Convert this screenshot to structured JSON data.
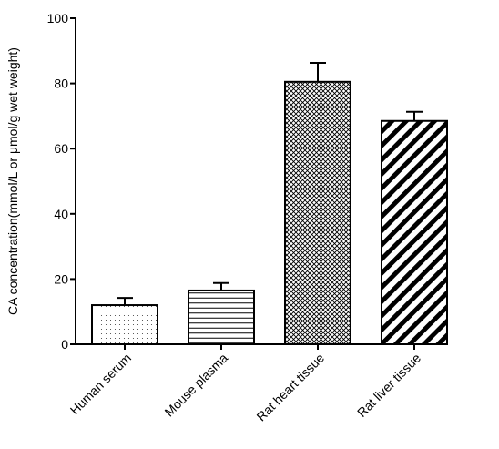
{
  "chart_data": {
    "type": "bar",
    "title": "",
    "xlabel": "",
    "ylabel": "CA concentration(mmol/L or μmol/g wet weight)",
    "ylim": [
      0,
      100
    ],
    "yticks": [
      0,
      20,
      40,
      60,
      80,
      100
    ],
    "categories": [
      "Human serum",
      "Mouse plasma",
      "Rat heart tissue",
      "Rat liver tissue"
    ],
    "values": [
      12,
      16.5,
      80.5,
      68.5
    ],
    "error_upper": [
      14.2,
      18.8,
      86.3,
      71.3
    ],
    "fill_patterns": [
      "dots",
      "horizontal-lines",
      "crosshatch",
      "diagonal-stripes"
    ],
    "grid": false,
    "legend": false,
    "colors": {
      "bar_stroke": "#000000",
      "pattern": "#000000",
      "background": "#ffffff"
    }
  }
}
